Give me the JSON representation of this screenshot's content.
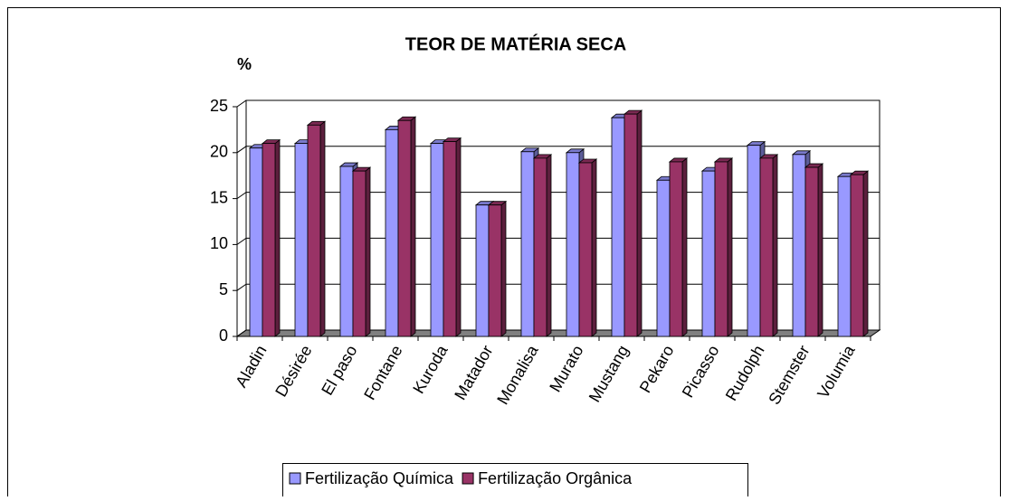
{
  "chart_data": {
    "type": "bar3d",
    "title": "TEOR DE MATÉRIA SECA",
    "y_label": "%",
    "categories": [
      "Aladin",
      "Désirée",
      "El paso",
      "Fontane",
      "Kuroda",
      "Matador",
      "Monalisa",
      "Murato",
      "Mustang",
      "Pekaro",
      "Picasso",
      "Rudolph",
      "Stemster",
      "Volumia"
    ],
    "series": [
      {
        "name": "Fertilização Química",
        "color": "#9999ff",
        "values": [
          20.5,
          21,
          18.5,
          22.5,
          21,
          14.3,
          20.1,
          20,
          23.8,
          17,
          18,
          20.8,
          19.8,
          17.4
        ]
      },
      {
        "name": "Fertilização Orgânica",
        "color": "#993366",
        "values": [
          21,
          23,
          18,
          23.5,
          21.2,
          14.3,
          19.4,
          18.9,
          24.2,
          19,
          19,
          19.4,
          18.4,
          17.6
        ]
      }
    ],
    "ylim": [
      0,
      25
    ],
    "yticks": [
      0,
      5,
      10,
      15,
      20,
      25
    ],
    "grid": true,
    "legend": "bottom"
  }
}
